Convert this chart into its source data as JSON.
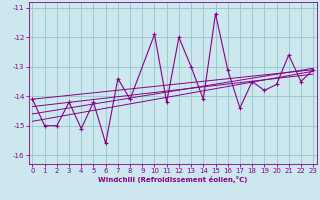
{
  "xlabel": "Windchill (Refroidissement éolien,°C)",
  "bg_color": "#cce8ee",
  "line_color": "#880088",
  "grid_color": "#99cccc",
  "x_data": [
    0,
    1,
    2,
    3,
    4,
    5,
    6,
    7,
    8,
    10,
    11,
    12,
    13,
    14,
    15,
    16,
    17,
    18,
    19,
    20,
    21,
    22,
    23
  ],
  "y_data": [
    -14.1,
    -15.0,
    -15.0,
    -14.2,
    -15.1,
    -14.2,
    -15.6,
    -13.4,
    -14.1,
    -11.9,
    -14.2,
    -12.0,
    -13.0,
    -14.1,
    -11.2,
    -13.1,
    -14.4,
    -13.5,
    -13.8,
    -13.6,
    -12.6,
    -13.5,
    -13.1
  ],
  "ylim": [
    -16.3,
    -10.8
  ],
  "xlim": [
    -0.3,
    23.3
  ],
  "xticks": [
    0,
    1,
    2,
    3,
    4,
    5,
    6,
    7,
    8,
    9,
    10,
    11,
    12,
    13,
    14,
    15,
    16,
    17,
    18,
    19,
    20,
    21,
    22,
    23
  ],
  "yticks": [
    -16,
    -15,
    -14,
    -13,
    -12,
    -11
  ],
  "trend_lines": [
    {
      "x": [
        0,
        23
      ],
      "y": [
        -14.1,
        -13.1
      ]
    },
    {
      "x": [
        0,
        23
      ],
      "y": [
        -14.35,
        -13.25
      ]
    },
    {
      "x": [
        0,
        23
      ],
      "y": [
        -14.6,
        -13.05
      ]
    },
    {
      "x": [
        0,
        23
      ],
      "y": [
        -14.85,
        -13.15
      ]
    }
  ]
}
